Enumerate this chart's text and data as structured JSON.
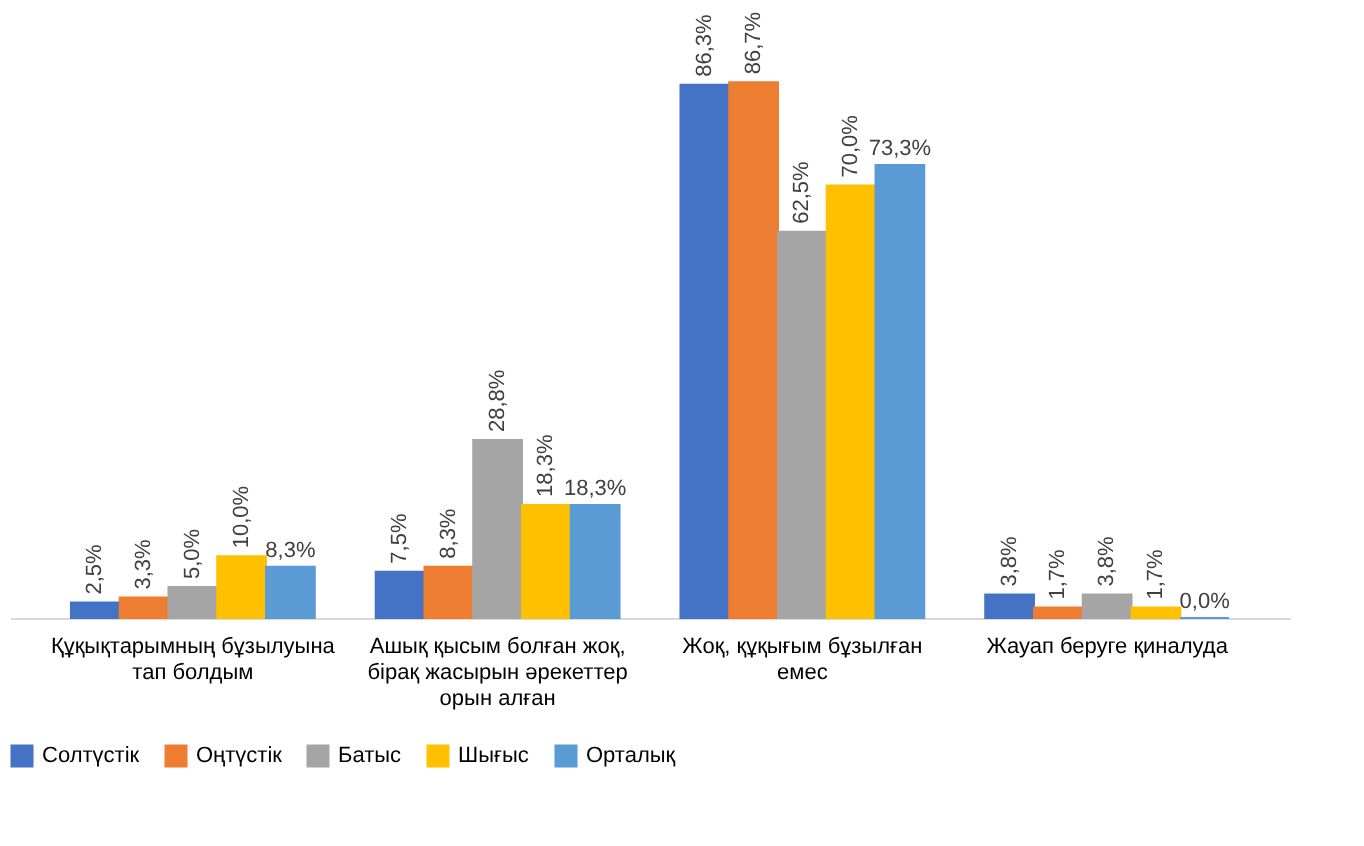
{
  "chart_data": {
    "type": "bar",
    "categories": [
      "Құқықтарымның бұзылуына тап болдым",
      "Ашық қысым болған жоқ, бірақ жасырын әрекеттер орын алған",
      "Жоқ, құқығым бұзылған емес",
      "Жауап беруге қиналуда"
    ],
    "series": [
      {
        "name": "Солтүстік",
        "color": "#4472c4",
        "values": [
          2.5,
          7.5,
          86.3,
          3.8
        ],
        "value_labels": [
          "2,5%",
          "7,5%",
          "86,3%",
          "3,8%"
        ]
      },
      {
        "name": "Оңтүстік",
        "color": "#ed7d31",
        "values": [
          3.3,
          8.3,
          86.7,
          1.7
        ],
        "value_labels": [
          "3,3%",
          "8,3%",
          "86,7%",
          "1,7%"
        ]
      },
      {
        "name": "Батыс",
        "color": "#a5a5a5",
        "values": [
          5.0,
          28.8,
          62.5,
          3.8
        ],
        "value_labels": [
          "5,0%",
          "28,8%",
          "62,5%",
          "3,8%"
        ]
      },
      {
        "name": "Шығыс",
        "color": "#ffc000",
        "values": [
          10.0,
          18.3,
          70.0,
          1.7
        ],
        "value_labels": [
          "10,0%",
          "18,3%",
          "70,0%",
          "1,7%"
        ]
      },
      {
        "name": "Орталық",
        "color": "#5b9bd5",
        "values": [
          8.3,
          18.3,
          73.3,
          0.0
        ],
        "value_labels": [
          "8,3%",
          "18,3%",
          "73,3%",
          "0,0%"
        ]
      }
    ],
    "legend": "bottom",
    "grid": false
  }
}
